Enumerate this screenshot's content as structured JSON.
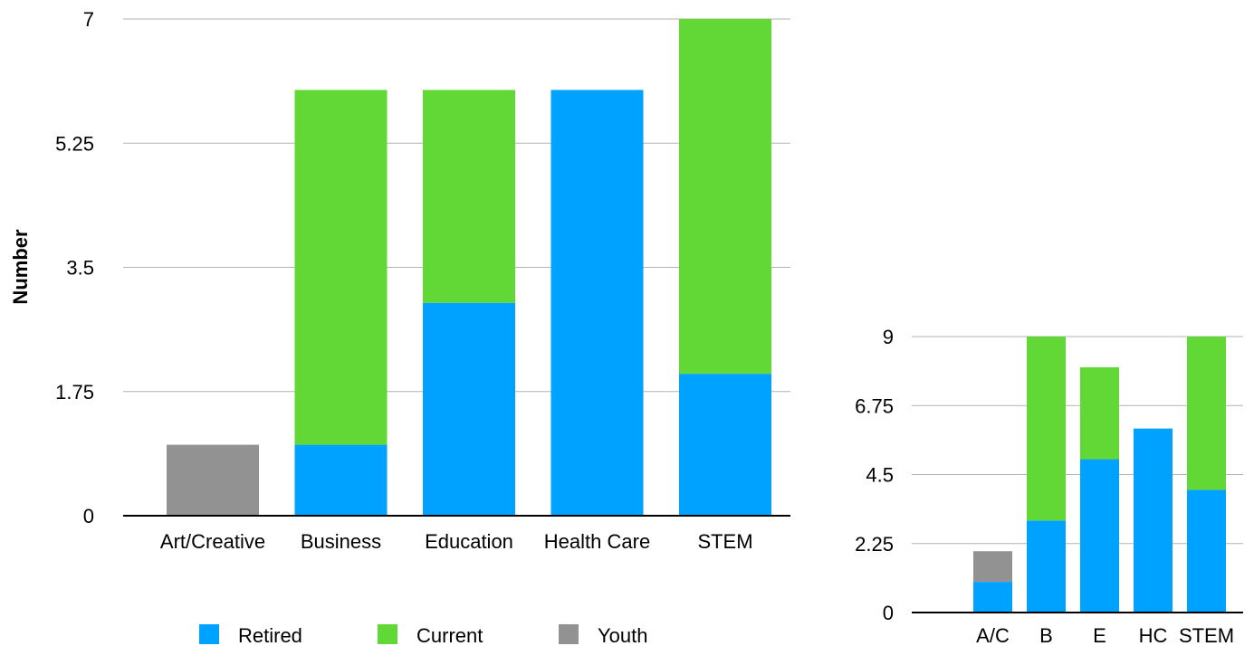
{
  "chart_data": [
    {
      "type": "bar",
      "stacked": true,
      "ylabel": "Number",
      "ylim": [
        0,
        7
      ],
      "yticks": [
        "0",
        "1.75",
        "3.5",
        "5.25",
        "7"
      ],
      "categories": [
        "Art/Creative",
        "Business",
        "Education",
        "Health Care",
        "STEM"
      ],
      "series": [
        {
          "name": "Retired",
          "color": "#00a2ff",
          "values": [
            0,
            1,
            3,
            6,
            2
          ]
        },
        {
          "name": "Current",
          "color": "#61d836",
          "values": [
            0,
            5,
            3,
            0,
            5
          ]
        },
        {
          "name": "Youth",
          "color": "#929292",
          "values": [
            1,
            0,
            0,
            0,
            0
          ]
        }
      ],
      "grid": true,
      "legend": "bottom"
    },
    {
      "type": "bar",
      "stacked": true,
      "ylim": [
        0,
        9
      ],
      "yticks": [
        "0",
        "2.25",
        "4.5",
        "6.75",
        "9"
      ],
      "categories": [
        "A/C",
        "B",
        "E",
        "HC",
        "STEM"
      ],
      "series": [
        {
          "color": "#00a2ff",
          "values": [
            1,
            3,
            5,
            6,
            4
          ]
        },
        {
          "color": "#61d836",
          "values": [
            0,
            6,
            3,
            0,
            5
          ]
        },
        {
          "color": "#929292",
          "values": [
            1,
            0,
            0,
            0,
            0
          ]
        }
      ],
      "grid": true
    }
  ]
}
